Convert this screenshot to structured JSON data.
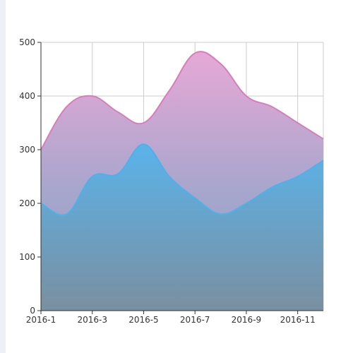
{
  "colors": {
    "pink": "#e3a6d2",
    "pink_line": "#d47fb9",
    "purple_mid": "#9fa3c6",
    "blue": "#58aee2",
    "blue_line": "#4fb0ea",
    "blue_bottom": "#7f91a3",
    "axis": "#333333",
    "grid": "#cccccc",
    "background_strip": "#eef0f5"
  },
  "chart_data": {
    "type": "area",
    "x": [
      "2016-1",
      "2016-2",
      "2016-3",
      "2016-4",
      "2016-5",
      "2016-6",
      "2016-7",
      "2016-8",
      "2016-9",
      "2016-10",
      "2016-11",
      "2016-12"
    ],
    "xtick_labels": [
      "2016-1",
      "2016-3",
      "2016-5",
      "2016-7",
      "2016-9",
      "2016-11"
    ],
    "ytick_labels": [
      "0",
      "100",
      "200",
      "300",
      "400",
      "500"
    ],
    "ylim": [
      0,
      500
    ],
    "grid": true,
    "title": "",
    "xlabel": "",
    "ylabel": "",
    "series": [
      {
        "values": [
          300,
          380,
          400,
          370,
          350,
          410,
          480,
          460,
          400,
          380,
          350,
          320
        ],
        "color": "#e3a6d2"
      },
      {
        "values": [
          200,
          180,
          250,
          255,
          310,
          250,
          210,
          180,
          200,
          230,
          250,
          280
        ],
        "color": "#58aee2"
      }
    ]
  }
}
